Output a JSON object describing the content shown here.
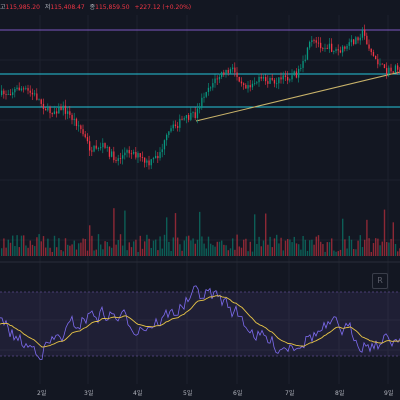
{
  "header": {
    "high_label": "고",
    "high_value": "115,985.20",
    "low_label": "저",
    "low_value": "115,408.47",
    "close_label": "종",
    "close_value": "115,859.50",
    "change": "+227.12 (+0.20%)"
  },
  "x_axis": {
    "labels": [
      "2일",
      "3일",
      "4일",
      "5일",
      "6일",
      "7일",
      "8일",
      "9일"
    ]
  },
  "controls": {
    "reset_label": "R"
  },
  "colors": {
    "background": "#131722",
    "up": "#089981",
    "down": "#f23645",
    "band_line": "#7e57c2",
    "level_line": "#26c6da",
    "trend_line": "#c9b36a",
    "rsi_line": "#7e6cf0",
    "rsi_ma": "#e8c547"
  },
  "chart_data": {
    "type": "candlestick",
    "indicators": [
      "volume",
      "oscillator"
    ],
    "series": [
      {
        "name": "price",
        "type": "candlestick"
      },
      {
        "name": "volume",
        "type": "bar"
      },
      {
        "name": "oscillator",
        "type": "line"
      },
      {
        "name": "oscillator-ma",
        "type": "line"
      }
    ],
    "grid": true
  }
}
